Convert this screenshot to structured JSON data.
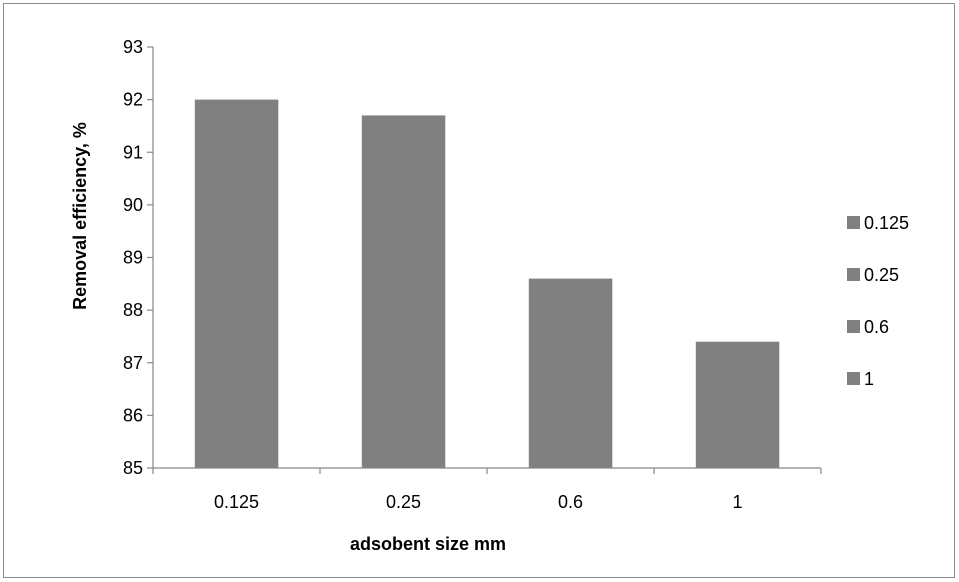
{
  "chart_data": {
    "type": "bar",
    "categories": [
      "0.125",
      "0.25",
      "0.6",
      "1"
    ],
    "values": [
      92.0,
      91.7,
      88.6,
      87.4
    ],
    "title": "",
    "xlabel": "adsobent size mm",
    "ylabel": "Removal efficiency, %",
    "ylim": [
      85,
      93
    ],
    "yticks": [
      "85",
      "86",
      "87",
      "88",
      "89",
      "90",
      "91",
      "92",
      "93"
    ],
    "grid": false,
    "legend": {
      "placement": "right",
      "entries": [
        "0.125",
        "0.25",
        "0.6",
        "1"
      ]
    },
    "colors": {
      "bar": "#808080",
      "axis": "#878787",
      "frame": "#8c8c8c"
    }
  }
}
